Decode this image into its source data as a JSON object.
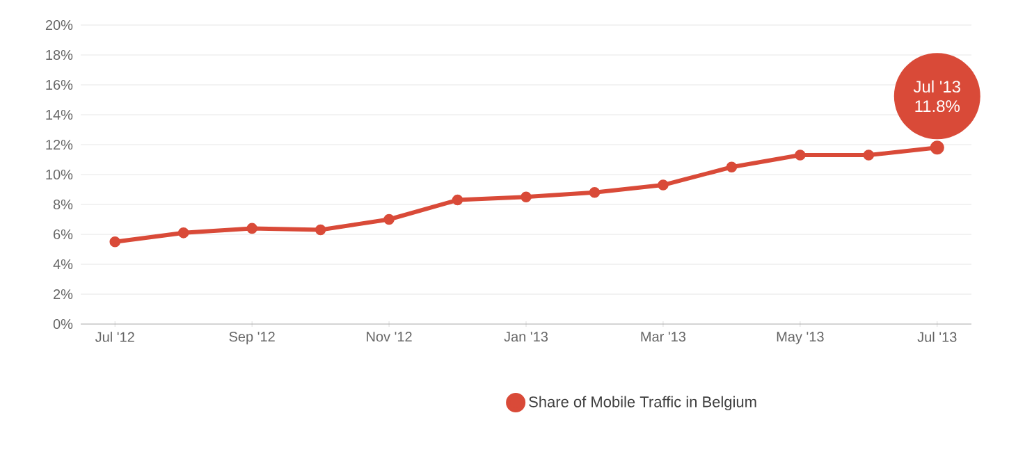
{
  "chart_data": {
    "type": "line",
    "categories": [
      "Jul '12",
      null,
      "Sep '12",
      null,
      "Nov '12",
      null,
      "Jan '13",
      null,
      "Mar '13",
      null,
      "May '13",
      null,
      "Jul '13"
    ],
    "series": [
      {
        "name": "Share of Mobile Traffic in Belgium",
        "color": "#d94a38",
        "values": [
          5.5,
          6.1,
          6.4,
          6.3,
          7.0,
          8.3,
          8.5,
          8.8,
          9.3,
          10.5,
          11.3,
          11.3,
          11.8
        ]
      }
    ],
    "ylim": [
      0,
      20
    ],
    "yticks": [
      {
        "value": 0,
        "label": "0%"
      },
      {
        "value": 2,
        "label": "2%"
      },
      {
        "value": 4,
        "label": "4%"
      },
      {
        "value": 6,
        "label": "6%"
      },
      {
        "value": 8,
        "label": "8%"
      },
      {
        "value": 10,
        "label": "10%"
      },
      {
        "value": 12,
        "label": "12%"
      },
      {
        "value": 14,
        "label": "14%"
      },
      {
        "value": 16,
        "label": "16%"
      },
      {
        "value": 18,
        "label": "18%"
      },
      {
        "value": 20,
        "label": "20%"
      }
    ],
    "grid": "y",
    "legend": "bottom",
    "marker": "circle",
    "line_style": "solid",
    "annotations": [
      "Jul '13",
      "11.8%"
    ]
  }
}
